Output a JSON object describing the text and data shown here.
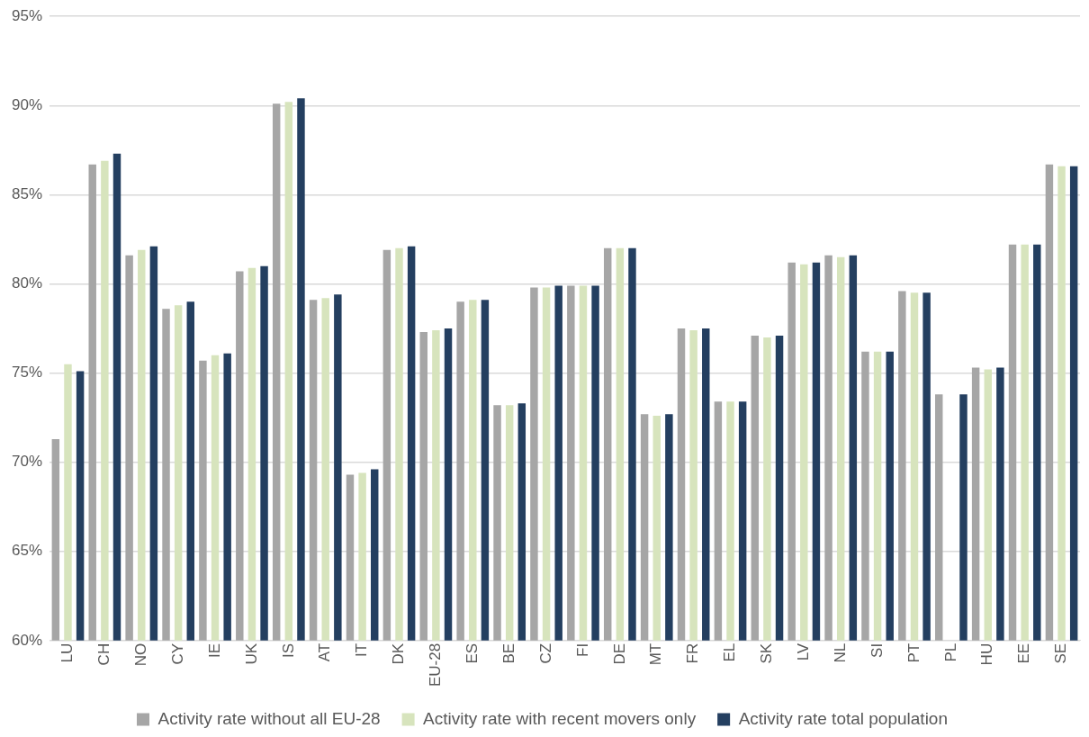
{
  "chart_data": {
    "type": "bar",
    "categories": [
      "LU",
      "CH",
      "NO",
      "CY",
      "IE",
      "UK",
      "IS",
      "AT",
      "IT",
      "DK",
      "EU-28",
      "ES",
      "BE",
      "CZ",
      "FI",
      "DE",
      "MT",
      "FR",
      "EL",
      "SK",
      "LV",
      "NL",
      "SI",
      "PT",
      "PL",
      "HU",
      "EE",
      "SE"
    ],
    "series": [
      {
        "name": "Activity rate without all EU-28",
        "color": "#a6a6a6",
        "values": [
          71.3,
          86.7,
          81.6,
          78.6,
          75.7,
          80.7,
          90.1,
          79.1,
          69.3,
          81.9,
          77.3,
          79.0,
          73.2,
          79.8,
          79.9,
          82.0,
          72.7,
          77.5,
          73.4,
          77.1,
          81.2,
          81.6,
          76.2,
          79.6,
          73.8,
          75.3,
          82.2,
          86.7
        ]
      },
      {
        "name": "Activity rate with recent movers only",
        "color": "#d7e4bd",
        "values": [
          75.5,
          86.9,
          81.9,
          78.8,
          76.0,
          80.9,
          90.2,
          79.2,
          69.4,
          82.0,
          77.4,
          79.1,
          73.2,
          79.8,
          79.9,
          82.0,
          72.6,
          77.4,
          73.4,
          77.0,
          81.1,
          81.5,
          76.2,
          79.5,
          null,
          75.2,
          82.2,
          86.6
        ]
      },
      {
        "name": "Activity rate total population",
        "color": "#243f60",
        "values": [
          75.1,
          87.3,
          82.1,
          79.0,
          76.1,
          81.0,
          90.4,
          79.4,
          69.6,
          82.1,
          77.5,
          79.1,
          73.3,
          79.9,
          79.9,
          82.0,
          72.7,
          77.5,
          73.4,
          77.1,
          81.2,
          81.6,
          76.2,
          79.5,
          73.8,
          75.3,
          82.2,
          86.6
        ]
      }
    ],
    "ylim": [
      60,
      95
    ],
    "yticks": [
      {
        "value": 60,
        "label": "60%"
      },
      {
        "value": 65,
        "label": "65%"
      },
      {
        "value": 70,
        "label": "70%"
      },
      {
        "value": 75,
        "label": "75%"
      },
      {
        "value": 80,
        "label": "80%"
      },
      {
        "value": 85,
        "label": "85%"
      },
      {
        "value": 90,
        "label": "90%"
      },
      {
        "value": 95,
        "label": "95%"
      }
    ],
    "grid": "y",
    "legend": "bottom"
  }
}
